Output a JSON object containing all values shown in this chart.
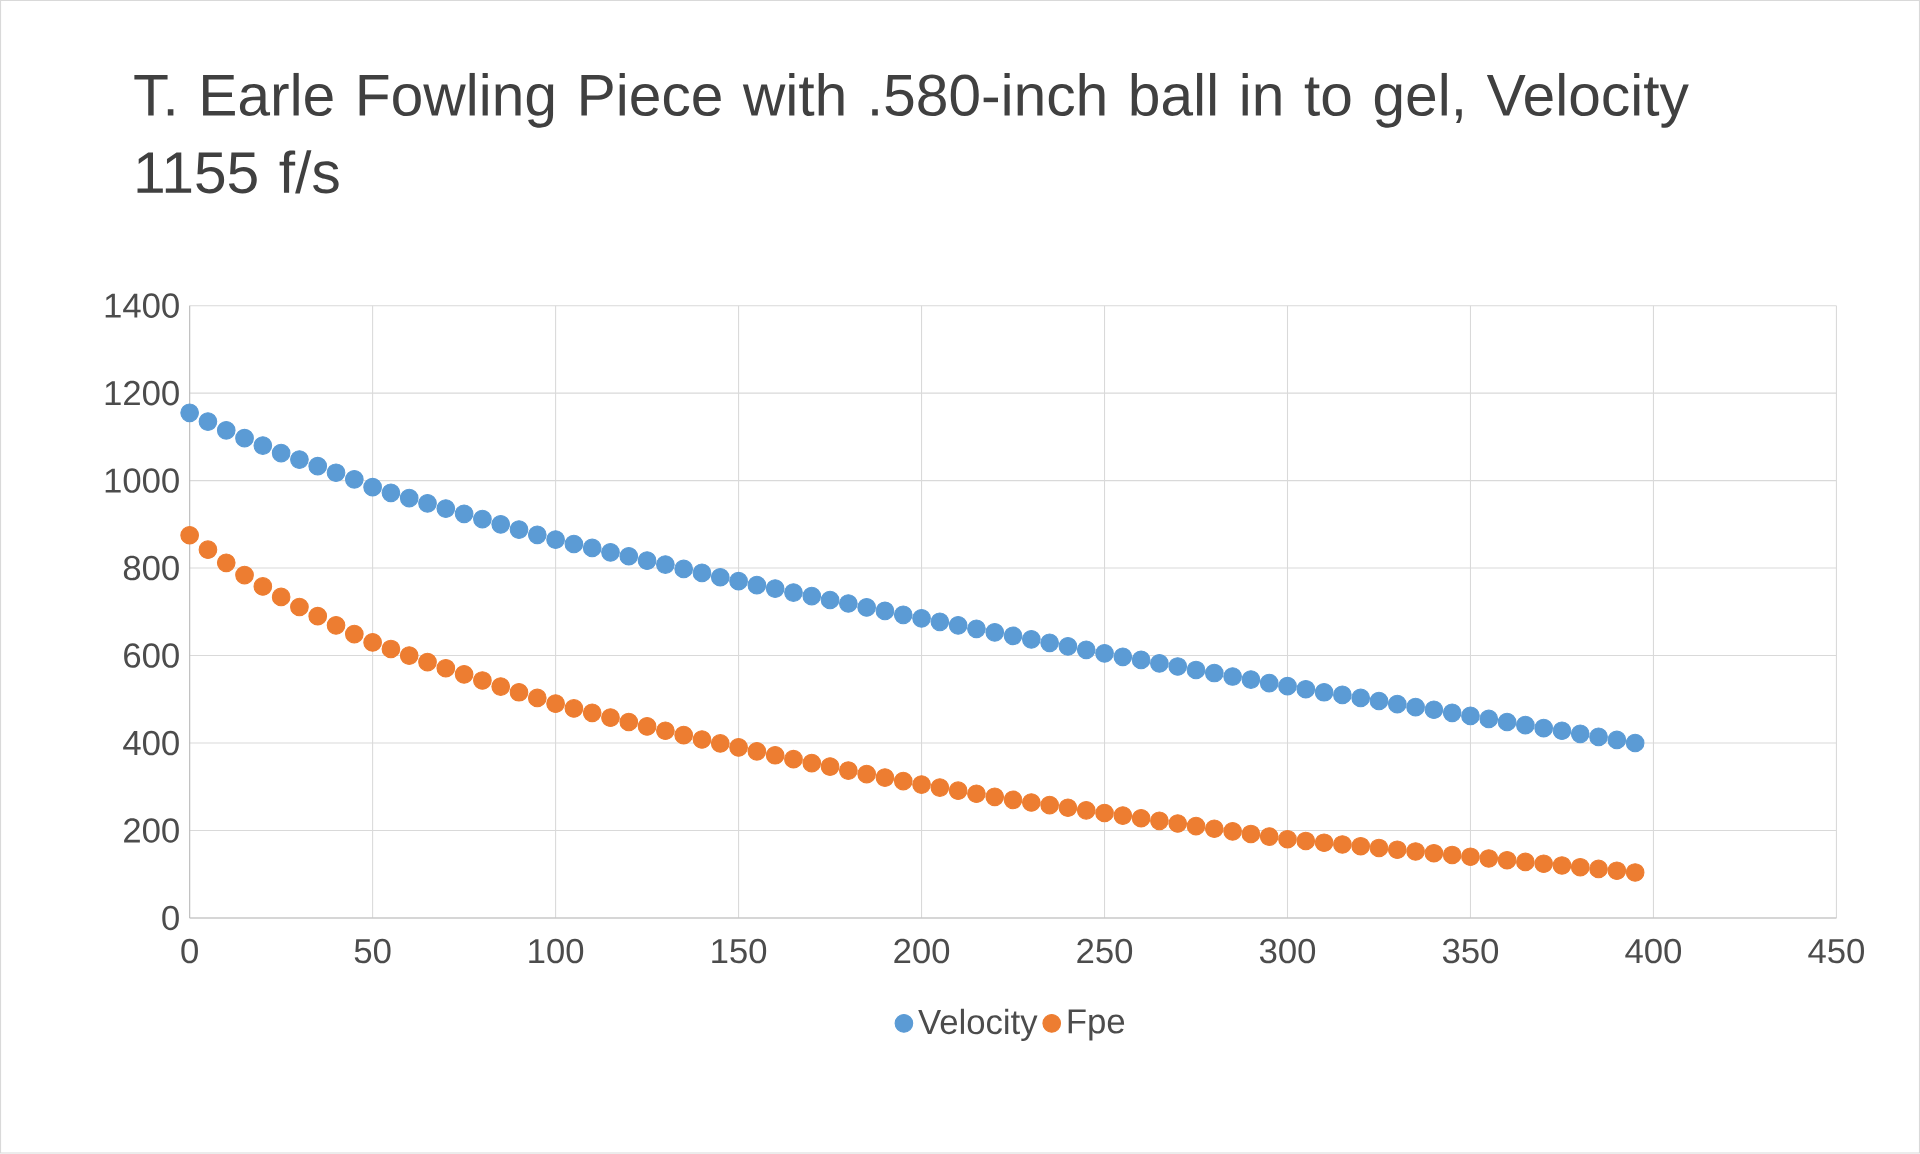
{
  "chart_data": {
    "type": "scatter",
    "title": "T. Earle Fowling Piece with .580-inch ball in to gel, Velocity 1155 f/s",
    "x": [
      0,
      5,
      10,
      15,
      20,
      25,
      30,
      35,
      40,
      45,
      50,
      55,
      60,
      65,
      70,
      75,
      80,
      85,
      90,
      95,
      100,
      105,
      110,
      115,
      120,
      125,
      130,
      135,
      140,
      145,
      150,
      155,
      160,
      165,
      170,
      175,
      180,
      185,
      190,
      195,
      200,
      205,
      210,
      215,
      220,
      225,
      230,
      235,
      240,
      245,
      250,
      255,
      260,
      265,
      270,
      275,
      280,
      285,
      290,
      295,
      300,
      305,
      310,
      315,
      320,
      325,
      330,
      335,
      340,
      345,
      350,
      355,
      360,
      365,
      370,
      375,
      380,
      385,
      390,
      395
    ],
    "series": [
      {
        "name": "Velocity",
        "color": "#5b9bd5",
        "values": [
          1155,
          1135,
          1115,
          1097,
          1080,
          1063,
          1048,
          1033,
          1018,
          1003,
          985,
          972,
          960,
          948,
          936,
          924,
          912,
          900,
          888,
          876,
          865,
          855,
          846,
          836,
          827,
          817,
          808,
          798,
          789,
          779,
          770,
          761,
          753,
          744,
          736,
          727,
          719,
          710,
          702,
          693,
          685,
          677,
          669,
          661,
          653,
          645,
          637,
          629,
          621,
          613,
          605,
          597,
          590,
          582,
          575,
          567,
          560,
          552,
          545,
          537,
          530,
          523,
          516,
          510,
          503,
          496,
          489,
          482,
          476,
          469,
          462,
          455,
          448,
          441,
          434,
          428,
          421,
          414,
          407,
          400
        ]
      },
      {
        "name": "Fpe",
        "color": "#ed7d31",
        "values": [
          875,
          842,
          812,
          784,
          758,
          734,
          711,
          690,
          669,
          649,
          630,
          615,
          600,
          585,
          571,
          557,
          543,
          529,
          516,
          503,
          490,
          479,
          469,
          458,
          448,
          438,
          428,
          418,
          408,
          399,
          390,
          381,
          372,
          363,
          354,
          346,
          337,
          329,
          321,
          313,
          305,
          298,
          291,
          284,
          277,
          270,
          264,
          258,
          252,
          246,
          240,
          234,
          228,
          222,
          216,
          210,
          204,
          198,
          192,
          186,
          180,
          176,
          172,
          168,
          164,
          160,
          156,
          152,
          148,
          144,
          140,
          136,
          132,
          128,
          124,
          120,
          116,
          112,
          108,
          104
        ]
      }
    ],
    "xlim": [
      0,
      450
    ],
    "xticks": [
      0,
      50,
      100,
      150,
      200,
      250,
      300,
      350,
      400,
      450
    ],
    "ylim": [
      0,
      1400
    ],
    "yticks": [
      0,
      200,
      400,
      600,
      800,
      1000,
      1200,
      1400
    ],
    "grid": true,
    "legend": "bottom",
    "marker": "circle"
  }
}
